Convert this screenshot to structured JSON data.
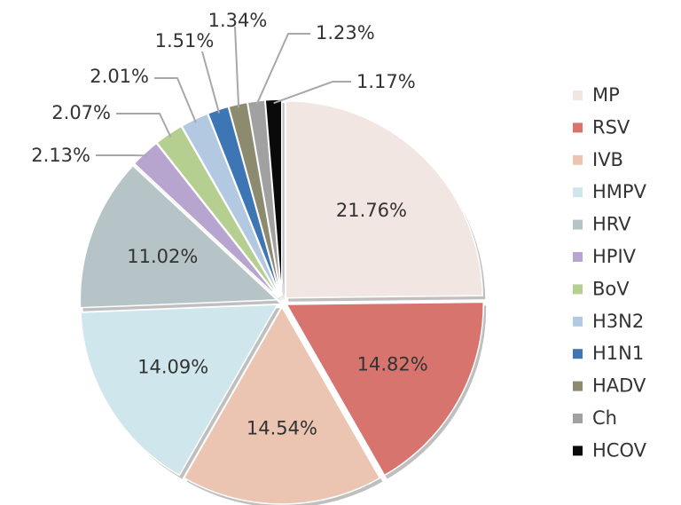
{
  "chart_data": {
    "type": "pie",
    "title": "",
    "legend_position": "right",
    "categories": [
      "MP",
      "RSV",
      "IVB",
      "HMPV",
      "HRV",
      "HPIV",
      "BoV",
      "H3N2",
      "H1N1",
      "HADV",
      "Ch",
      "HCOV"
    ],
    "values": [
      21.76,
      14.82,
      14.54,
      14.09,
      11.02,
      2.13,
      2.07,
      2.01,
      1.51,
      1.34,
      1.23,
      1.17
    ],
    "labels": [
      "21.76%",
      "14.82%",
      "14.54%",
      "14.09%",
      "11.02%",
      "2.13%",
      "2.07%",
      "2.01%",
      "1.51%",
      "1.34%",
      "1.23%",
      "1.17%"
    ],
    "colors": [
      "#f1e6e1",
      "#d8746e",
      "#ebc5b2",
      "#cfe7ec",
      "#b7c4c7",
      "#b7a4cf",
      "#b5cf90",
      "#b3c9e1",
      "#3e76b5",
      "#8d8b6f",
      "#a1a1a1",
      "#0a0a0a"
    ]
  }
}
